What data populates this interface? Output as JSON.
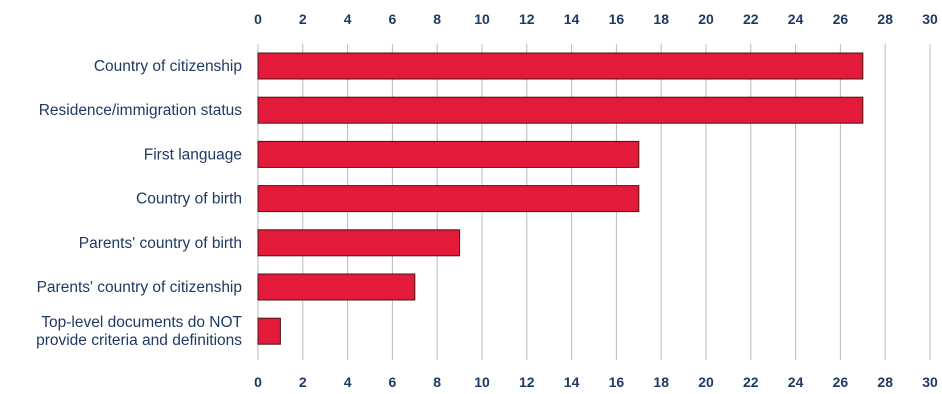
{
  "chart_data": {
    "type": "bar",
    "orientation": "horizontal",
    "categories": [
      [
        "Country of citizenship"
      ],
      [
        "Residence/immigration status"
      ],
      [
        "First language"
      ],
      [
        "Country of birth"
      ],
      [
        "Parents' country of birth"
      ],
      [
        "Parents' country of citizenship"
      ],
      [
        "Top-level documents do NOT",
        "provide criteria and definitions"
      ]
    ],
    "values": [
      27,
      27,
      17,
      17,
      9,
      7,
      1
    ],
    "xlim": [
      0,
      30
    ],
    "ticks": [
      0,
      2,
      4,
      6,
      8,
      10,
      12,
      14,
      16,
      18,
      20,
      22,
      24,
      26,
      28,
      30
    ],
    "tick_labels": [
      "0",
      "2",
      "4",
      "6",
      "8",
      "10",
      "12",
      "14",
      "16",
      "18",
      "20",
      "22",
      "24",
      "26",
      "28",
      "30"
    ],
    "tick_label_positions": "top and bottom",
    "grid": true,
    "legend": "none",
    "colors": {
      "bar": "#e41a3b",
      "text": "#1f3a63",
      "grid": "#b9bcc3"
    }
  }
}
